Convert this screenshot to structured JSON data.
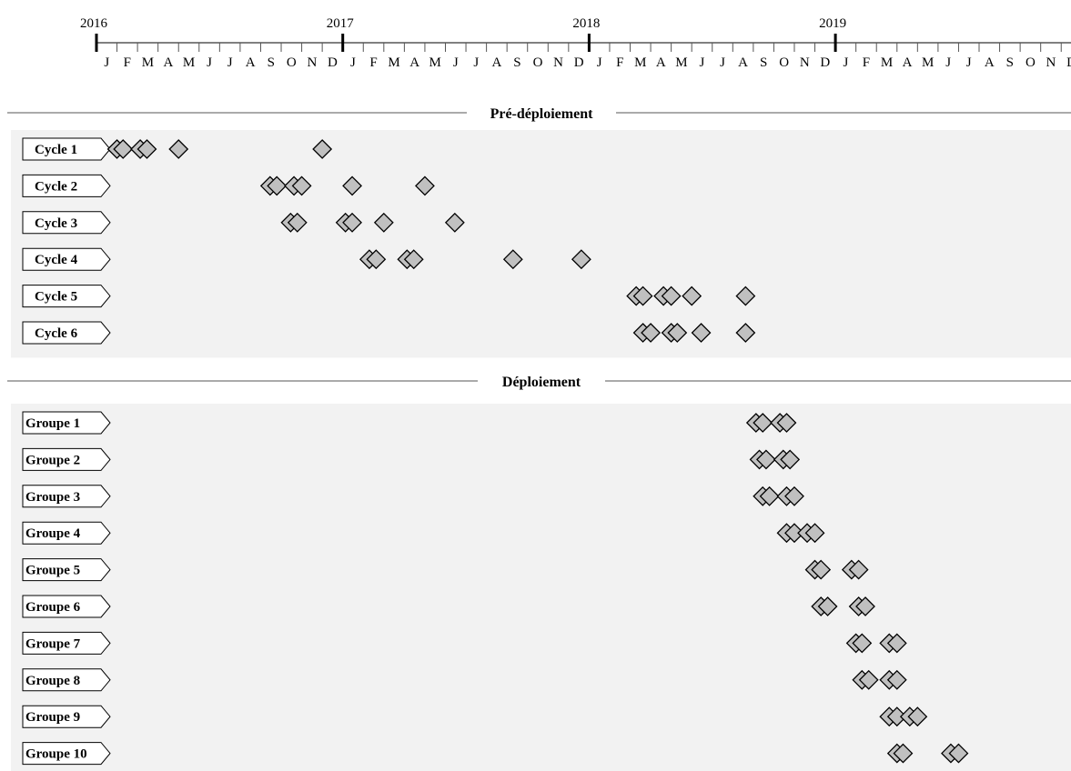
{
  "chart_data": {
    "type": "timeline",
    "years": [
      "2016",
      "2017",
      "2018",
      "2019"
    ],
    "months": [
      "J",
      "F",
      "M",
      "A",
      "M",
      "J",
      "J",
      "A",
      "S",
      "O",
      "N",
      "D"
    ],
    "x_range": [
      "2016-01",
      "2019-12"
    ],
    "marker_color": "#c0c0c0",
    "section_bg": "#f2f2f2",
    "sections": [
      {
        "name": "Pré-déploiement",
        "rows": [
          {
            "label": "Cycle 1",
            "events": [
              "2016-02-01",
              "2016-02-10",
              "2016-03-05",
              "2016-03-15",
              "2016-05-01",
              "2016-12-01"
            ]
          },
          {
            "label": "Cycle 2",
            "events": [
              "2016-09-15",
              "2016-09-25",
              "2016-10-20",
              "2016-11-01",
              "2017-01-15",
              "2017-05-01"
            ]
          },
          {
            "label": "Cycle 3",
            "events": [
              "2016-10-15",
              "2016-10-25",
              "2017-01-05",
              "2017-01-15",
              "2017-03-01",
              "2017-06-15"
            ]
          },
          {
            "label": "Cycle 4",
            "events": [
              "2017-02-10",
              "2017-02-20",
              "2017-04-05",
              "2017-04-15",
              "2017-09-10",
              "2017-12-20"
            ]
          },
          {
            "label": "Cycle 5",
            "events": [
              "2018-03-10",
              "2018-03-20",
              "2018-04-20",
              "2018-05-01",
              "2018-06-01",
              "2018-08-20"
            ]
          },
          {
            "label": "Cycle 6",
            "events": [
              "2018-03-20",
              "2018-04-01",
              "2018-05-01",
              "2018-05-10",
              "2018-06-15",
              "2018-08-20"
            ]
          }
        ]
      },
      {
        "name": "Déploiement",
        "rows": [
          {
            "label": "Groupe 1",
            "events": [
              "2018-09-05",
              "2018-09-15",
              "2018-10-10",
              "2018-10-20"
            ]
          },
          {
            "label": "Groupe 2",
            "events": [
              "2018-09-10",
              "2018-09-20",
              "2018-10-15",
              "2018-10-25"
            ]
          },
          {
            "label": "Groupe 3",
            "events": [
              "2018-09-15",
              "2018-09-25",
              "2018-10-20",
              "2018-11-01"
            ]
          },
          {
            "label": "Groupe 4",
            "events": [
              "2018-10-20",
              "2018-11-01",
              "2018-11-20",
              "2018-12-01"
            ]
          },
          {
            "label": "Groupe 5",
            "events": [
              "2018-12-01",
              "2018-12-10",
              "2019-01-25",
              "2019-02-05"
            ]
          },
          {
            "label": "Groupe 6",
            "events": [
              "2018-12-10",
              "2018-12-20",
              "2019-02-05",
              "2019-02-15"
            ]
          },
          {
            "label": "Groupe 7",
            "events": [
              "2019-02-01",
              "2019-02-10",
              "2019-03-20",
              "2019-04-01"
            ]
          },
          {
            "label": "Groupe 8",
            "events": [
              "2019-02-10",
              "2019-02-20",
              "2019-03-20",
              "2019-04-01"
            ]
          },
          {
            "label": "Groupe 9",
            "events": [
              "2019-03-20",
              "2019-04-01",
              "2019-04-20",
              "2019-05-01"
            ]
          },
          {
            "label": "Groupe 10",
            "events": [
              "2019-04-01",
              "2019-04-10",
              "2019-06-20",
              "2019-07-01"
            ]
          }
        ]
      }
    ]
  }
}
